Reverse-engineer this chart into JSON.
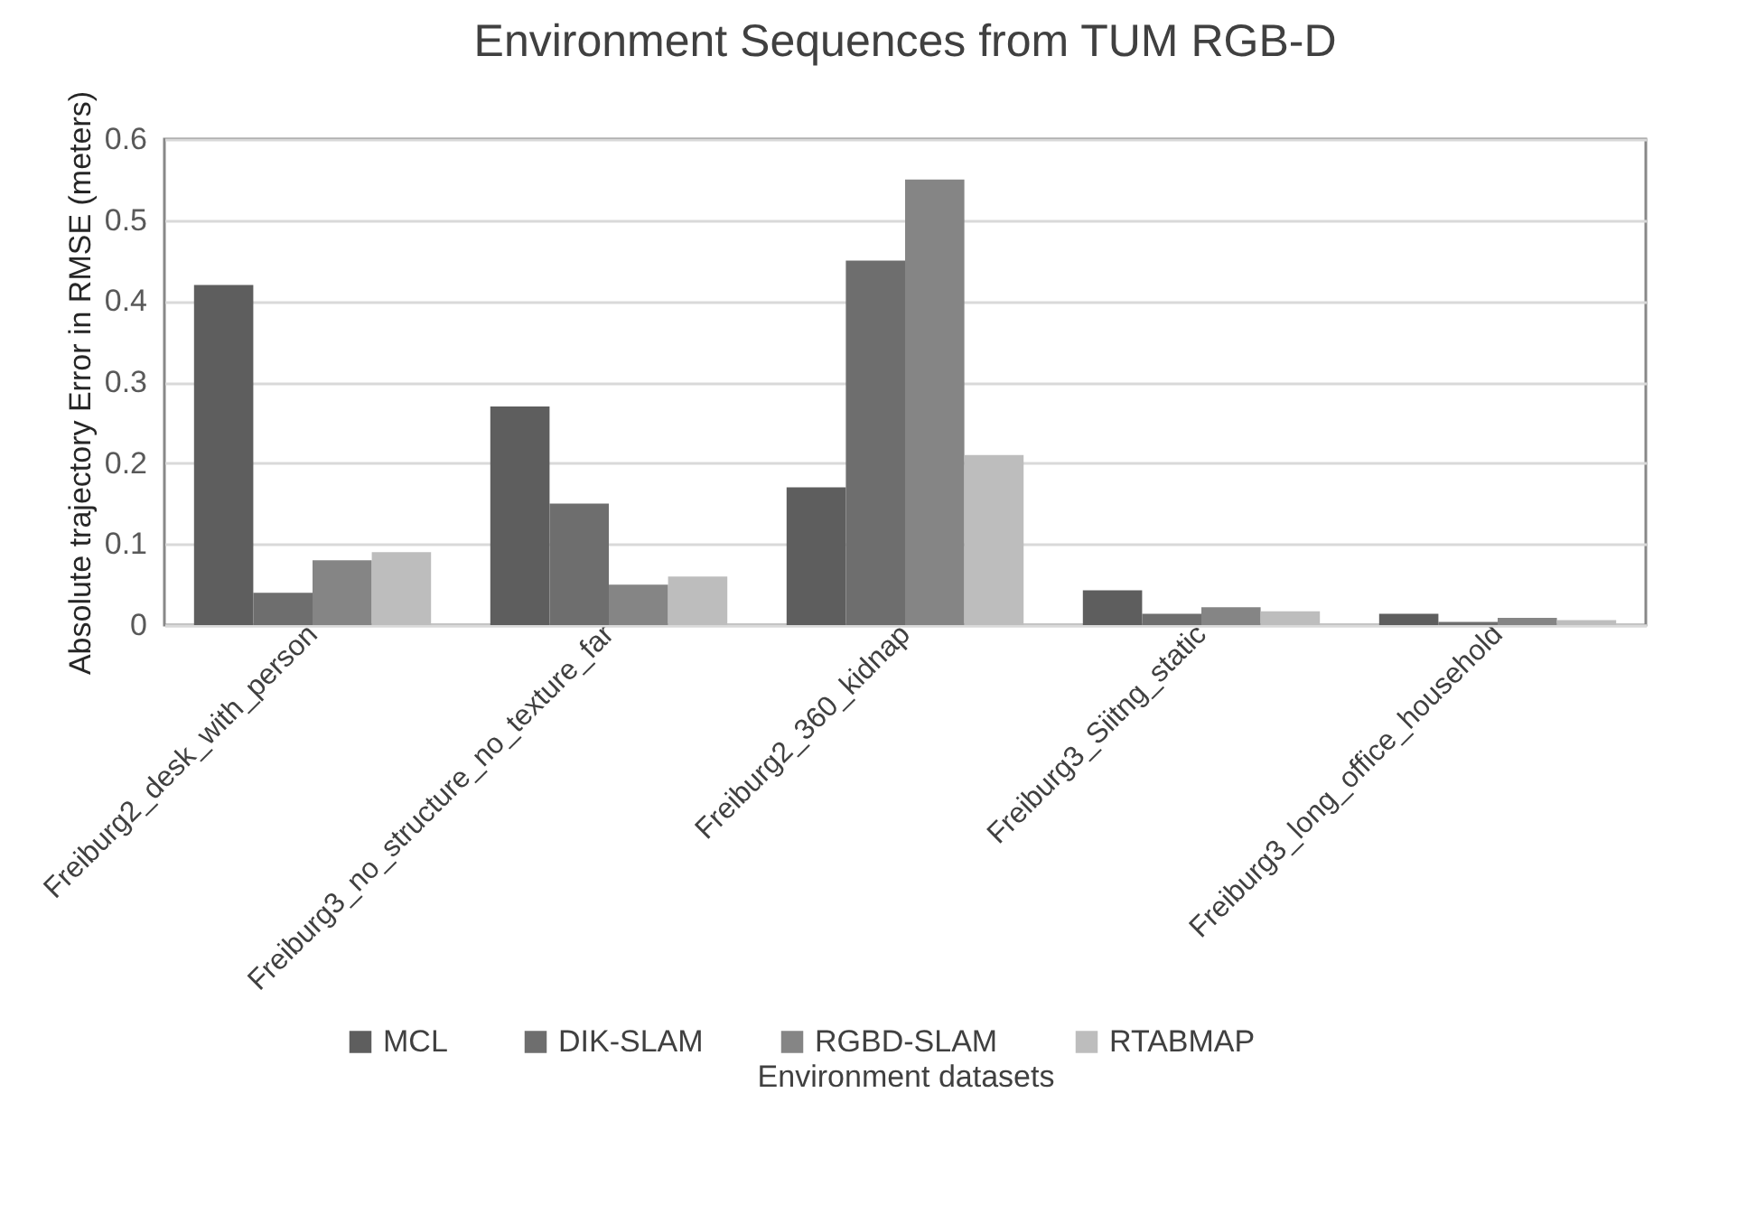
{
  "chart_data": {
    "type": "bar",
    "title": "Environment Sequences from TUM RGB-D",
    "xlabel": "Environment datasets",
    "ylabel": "Absolute trajectory Error in RMSE (meters)",
    "categories": [
      "Freiburg2_desk_with_person",
      "Freiburg3_no_structure_no_texture_far",
      "Freiburg2_360_kidnap",
      "Freiburg3_Siitng_static",
      "Freiburg3_long_office_household"
    ],
    "series": [
      {
        "name": "MCL",
        "color": "#5e5e5e",
        "values": [
          0.42,
          0.27,
          0.17,
          0.043,
          0.014
        ]
      },
      {
        "name": "DIK-SLAM",
        "color": "#6e6e6e",
        "values": [
          0.04,
          0.15,
          0.45,
          0.014,
          0.004
        ]
      },
      {
        "name": "RGBD-SLAM",
        "color": "#858585",
        "values": [
          0.08,
          0.05,
          0.55,
          0.022,
          0.009
        ]
      },
      {
        "name": "RTABMAP",
        "color": "#bdbdbd",
        "values": [
          0.09,
          0.06,
          0.21,
          0.017,
          0.006
        ]
      }
    ],
    "ylim": [
      0,
      0.6
    ],
    "yticks": [
      0,
      0.1,
      0.2,
      0.3,
      0.4,
      0.5,
      0.6
    ],
    "grid": "y",
    "legend": "bottom"
  }
}
